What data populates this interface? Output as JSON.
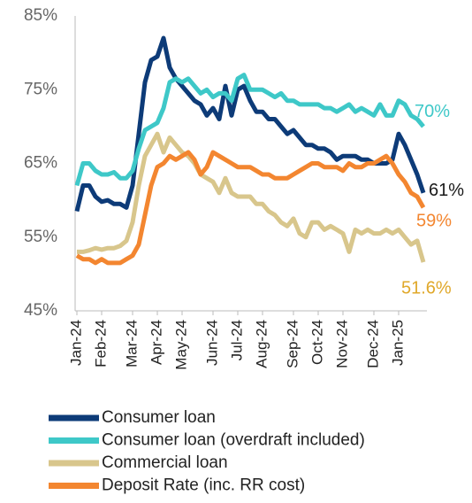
{
  "chart_data": {
    "type": "line",
    "categories": [
      "Jan-24",
      null,
      null,
      null,
      "Feb-24",
      null,
      null,
      null,
      null,
      "Mar-24",
      null,
      null,
      null,
      "Apr-24",
      null,
      null,
      null,
      "May-24",
      null,
      null,
      null,
      null,
      "Jun-24",
      null,
      null,
      null,
      "Jul-24",
      null,
      null,
      null,
      "Aug-24",
      null,
      null,
      null,
      null,
      "Sep-24",
      null,
      null,
      null,
      "Oct-24",
      null,
      null,
      null,
      "Nov-24",
      null,
      null,
      null,
      null,
      "Dec-24",
      null,
      null,
      null,
      "Jan-25",
      null,
      null,
      null,
      null
    ],
    "ylim": [
      45,
      85
    ],
    "yticks": [
      {
        "value": 45,
        "label": "45%"
      },
      {
        "value": 55,
        "label": "55%"
      },
      {
        "value": 65,
        "label": "65%"
      },
      {
        "value": 75,
        "label": "75%"
      },
      {
        "value": 85,
        "label": "85%"
      }
    ],
    "legend": "bottom",
    "series": [
      {
        "name": "Consumer loan",
        "color": "#0d3b78",
        "label_color": "#1a1a1a",
        "end_label": "61%",
        "values": [
          58.5,
          62,
          62,
          60.5,
          59.8,
          60,
          59.5,
          59.5,
          59,
          62,
          69,
          76,
          79,
          79.5,
          82,
          78,
          76.5,
          75.5,
          74.5,
          73.5,
          73,
          71.5,
          72.5,
          71,
          75.5,
          71.5,
          75,
          75.5,
          73.5,
          72,
          72,
          71,
          71,
          70,
          69,
          69.5,
          68.5,
          67.5,
          67.5,
          67,
          67,
          66.5,
          65.5,
          66,
          66,
          66,
          65.5,
          65.5,
          65,
          65,
          65,
          65.5,
          69,
          67.5,
          65.5,
          63.5,
          61
        ]
      },
      {
        "name": "Consumer loan (overdraft included)",
        "color": "#3ec8c8",
        "label_color": "#3ec8c8",
        "end_label": "70%",
        "values": [
          62,
          65,
          65,
          64,
          63.5,
          63.5,
          63.8,
          63,
          63,
          64,
          67,
          69.5,
          70,
          70.5,
          72.5,
          76,
          76.5,
          76,
          76.5,
          75.5,
          74.5,
          75,
          74,
          74.5,
          74.5,
          73.5,
          76.5,
          77,
          75,
          75,
          75,
          74.5,
          74,
          74.5,
          73.5,
          73.5,
          73,
          73,
          73,
          73,
          72.5,
          72.5,
          72,
          72.5,
          73,
          72,
          72.5,
          72,
          71.5,
          73,
          71.5,
          71.5,
          73.5,
          73,
          71.5,
          71,
          70
        ]
      },
      {
        "name": "Commercial loan",
        "color": "#d8c68c",
        "label_color": "#e0a82a",
        "end_label": "51.6%",
        "values": [
          53,
          53,
          53.2,
          53.5,
          53.3,
          53.5,
          53.5,
          53.8,
          54.5,
          57,
          62,
          66,
          67.5,
          69,
          66.5,
          68.5,
          67.5,
          66.5,
          66,
          65,
          63.5,
          63,
          62.5,
          61,
          63,
          61,
          60.5,
          60.5,
          60.5,
          59.5,
          59.5,
          58.5,
          58,
          57,
          56.5,
          57.5,
          55.5,
          55,
          57,
          57,
          56,
          56.5,
          56,
          55.5,
          53,
          56,
          55.5,
          56,
          55.5,
          55.5,
          56,
          55.5,
          56,
          55,
          54,
          54.5,
          51.6
        ]
      },
      {
        "name": "Deposit Rate (inc. RR cost)",
        "color": "#f38630",
        "label_color": "#f38630",
        "end_label": "59%",
        "values": [
          52.5,
          52,
          52,
          51.5,
          52,
          51.5,
          51.5,
          51.5,
          52,
          52.5,
          54,
          58,
          62,
          64.5,
          65,
          66,
          65.5,
          66,
          66.5,
          65.5,
          63.5,
          64.5,
          66.5,
          66,
          65.5,
          65,
          64.5,
          64.5,
          64.5,
          64,
          63.5,
          63.5,
          63,
          63,
          63,
          63.5,
          64,
          64.5,
          65,
          65,
          64.5,
          64.5,
          64.5,
          64,
          65,
          64.5,
          64.5,
          65,
          65,
          65.5,
          66,
          65,
          63.5,
          62.5,
          61,
          60.5,
          59
        ]
      }
    ]
  }
}
